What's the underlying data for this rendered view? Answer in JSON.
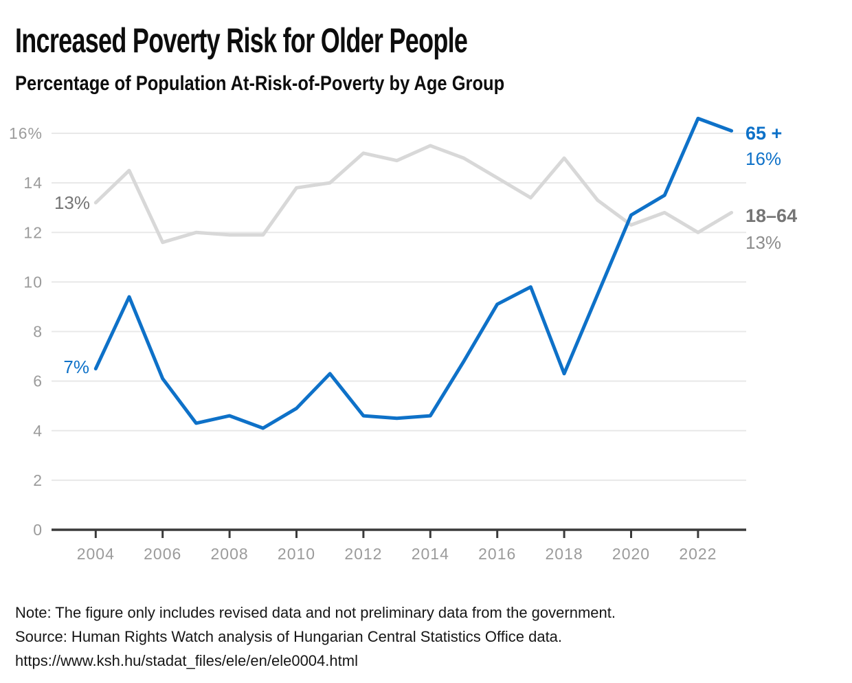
{
  "header": {
    "title": "Increased Poverty Risk for Older People",
    "subtitle": "Percentage of Population At-Risk-of-Poverty by Age Group"
  },
  "colors": {
    "older_line": "#0e71c8",
    "younger_line": "#d8d8d8",
    "axis": "#3a3a3a",
    "gridline": "#e8e8e8",
    "tick_label": "#9b9b9b",
    "annotation_gray": "#757575",
    "annotation_gray_light": "#8c8c8c"
  },
  "chart_data": {
    "type": "line",
    "title": "Increased Poverty Risk for Older People",
    "subtitle": "Percentage of Population At-Risk-of-Poverty by Age Group",
    "xlabel": "",
    "ylabel": "Percentage of population at-risk-of-poverty",
    "x": [
      2004,
      2005,
      2006,
      2007,
      2008,
      2009,
      2010,
      2011,
      2012,
      2013,
      2014,
      2015,
      2016,
      2017,
      2018,
      2019,
      2020,
      2021,
      2022,
      2023
    ],
    "series": [
      {
        "name": "18–64",
        "color_key": "younger_line",
        "values": [
          13.2,
          14.5,
          11.6,
          12.0,
          11.9,
          11.9,
          13.8,
          14.0,
          15.2,
          14.9,
          15.5,
          15.0,
          14.2,
          13.4,
          15.0,
          13.3,
          12.3,
          12.8,
          12.0,
          12.8
        ]
      },
      {
        "name": "65 +",
        "color_key": "older_line",
        "values": [
          6.5,
          9.4,
          6.1,
          4.3,
          4.6,
          4.1,
          4.9,
          6.3,
          4.6,
          4.5,
          4.6,
          6.8,
          9.1,
          9.8,
          6.3,
          9.5,
          12.7,
          13.5,
          16.6,
          16.1
        ]
      }
    ],
    "x_ticks": [
      2004,
      2006,
      2008,
      2010,
      2012,
      2014,
      2016,
      2018,
      2020,
      2022
    ],
    "y_ticks": [
      {
        "v": 16,
        "label": "16%"
      },
      {
        "v": 14,
        "label": "14"
      },
      {
        "v": 12,
        "label": "12"
      },
      {
        "v": 10,
        "label": "10"
      },
      {
        "v": 8,
        "label": "8"
      },
      {
        "v": 6,
        "label": "6"
      },
      {
        "v": 4,
        "label": "4"
      },
      {
        "v": 2,
        "label": "2"
      },
      {
        "v": 0,
        "label": "0"
      }
    ],
    "ylim": [
      0,
      17
    ],
    "grid": "horizontal",
    "legend_position": "line-end-labels"
  },
  "annotations": {
    "start_younger_value": "13%",
    "start_older_value": "7%",
    "end_older_name": "65 +",
    "end_older_value": "16%",
    "end_younger_name": "18–64",
    "end_younger_value": "13%"
  },
  "notes": {
    "note": "Note: The figure only includes revised data and not preliminary data from the government.",
    "source": "Source: Human Rights Watch analysis of Hungarian Central Statistics Office data.",
    "url": "https://www.ksh.hu/stadat_files/ele/en/ele0004.html"
  }
}
